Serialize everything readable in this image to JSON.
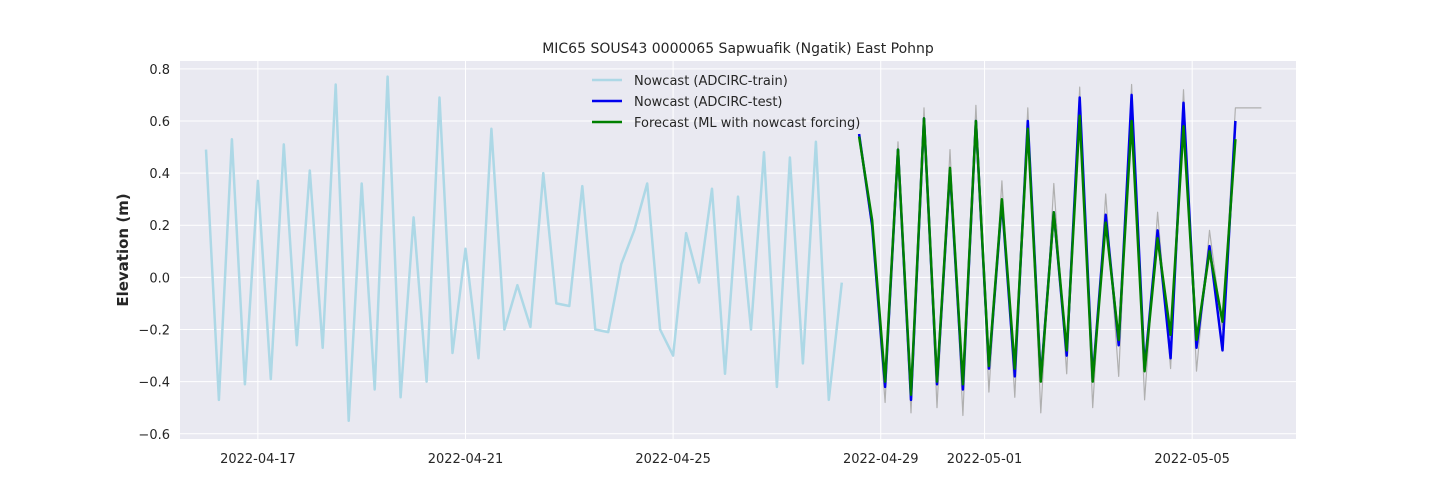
{
  "chart_data": {
    "type": "line",
    "title": "MIC65 SOUS43 0000065 Sapwuafik (Ngatik) East Pohnp",
    "xlabel": "",
    "ylabel": "Elevation (m)",
    "x_is_date": true,
    "xlim": [
      "2022-04-15T12:00",
      "2022-05-07T00:00"
    ],
    "ylim": [
      -0.62,
      0.83
    ],
    "xticks": [
      {
        "label": "2022-04-17",
        "value": "2022-04-17T00:00"
      },
      {
        "label": "2022-04-21",
        "value": "2022-04-21T00:00"
      },
      {
        "label": "2022-04-25",
        "value": "2022-04-25T00:00"
      },
      {
        "label": "2022-04-29",
        "value": "2022-04-29T00:00"
      },
      {
        "label": "2022-05-01",
        "value": "2022-05-01T00:00"
      },
      {
        "label": "2022-05-05",
        "value": "2022-05-05T00:00"
      }
    ],
    "yticks": [
      -0.6,
      -0.4,
      -0.2,
      0.0,
      0.2,
      0.4,
      0.6,
      0.8
    ],
    "ytick_labels": [
      "−0.6",
      "−0.4",
      "−0.2",
      "0.0",
      "0.2",
      "0.4",
      "0.6",
      "0.8"
    ],
    "grid": true,
    "legend_position": "top-center",
    "background": "#e9e9f1",
    "series": [
      {
        "name": "",
        "color": "#b0b0b0",
        "width": 1.2,
        "in_legend": false,
        "x": [
          "2022-04-28T14:00",
          "2022-04-28T20:00",
          "2022-04-29T02:00",
          "2022-04-29T08:00",
          "2022-04-29T14:00",
          "2022-04-29T20:00",
          "2022-04-30T02:00",
          "2022-04-30T08:00",
          "2022-04-30T14:00",
          "2022-04-30T20:00",
          "2022-05-01T02:00",
          "2022-05-01T08:00",
          "2022-05-01T14:00",
          "2022-05-01T20:00",
          "2022-05-02T02:00",
          "2022-05-02T08:00",
          "2022-05-02T14:00",
          "2022-05-02T20:00",
          "2022-05-03T02:00",
          "2022-05-03T08:00",
          "2022-05-03T14:00",
          "2022-05-03T20:00",
          "2022-05-04T02:00",
          "2022-05-04T08:00",
          "2022-05-04T14:00",
          "2022-05-04T20:00",
          "2022-05-05T02:00",
          "2022-05-05T08:00",
          "2022-05-05T14:00",
          "2022-05-05T20:00",
          "2022-05-06T02:00",
          "2022-05-06T08:00"
        ],
        "values": [
          0.53,
          0.18,
          -0.48,
          0.52,
          -0.52,
          0.65,
          -0.5,
          0.49,
          -0.53,
          0.66,
          -0.44,
          0.37,
          -0.46,
          0.65,
          -0.52,
          0.36,
          -0.37,
          0.73,
          -0.5,
          0.32,
          -0.38,
          0.74,
          -0.47,
          0.25,
          -0.35,
          0.72,
          -0.36,
          0.18,
          -0.2,
          0.65,
          0.65,
          0.65
        ]
      },
      {
        "name": "Nowcast (ADCIRC-train)",
        "color": "#add8e6",
        "width": 2.5,
        "in_legend": true,
        "x": [
          "2022-04-16T00:00",
          "2022-04-16T06:00",
          "2022-04-16T12:00",
          "2022-04-16T18:00",
          "2022-04-17T00:00",
          "2022-04-17T06:00",
          "2022-04-17T12:00",
          "2022-04-17T18:00",
          "2022-04-18T00:00",
          "2022-04-18T06:00",
          "2022-04-18T12:00",
          "2022-04-18T18:00",
          "2022-04-19T00:00",
          "2022-04-19T06:00",
          "2022-04-19T12:00",
          "2022-04-19T18:00",
          "2022-04-20T00:00",
          "2022-04-20T06:00",
          "2022-04-20T12:00",
          "2022-04-20T18:00",
          "2022-04-21T00:00",
          "2022-04-21T06:00",
          "2022-04-21T12:00",
          "2022-04-21T18:00",
          "2022-04-22T00:00",
          "2022-04-22T06:00",
          "2022-04-22T12:00",
          "2022-04-22T18:00",
          "2022-04-23T00:00",
          "2022-04-23T06:00",
          "2022-04-23T12:00",
          "2022-04-23T18:00",
          "2022-04-24T00:00",
          "2022-04-24T06:00",
          "2022-04-24T12:00",
          "2022-04-24T18:00",
          "2022-04-25T00:00",
          "2022-04-25T06:00",
          "2022-04-25T12:00",
          "2022-04-25T18:00",
          "2022-04-26T00:00",
          "2022-04-26T06:00",
          "2022-04-26T12:00",
          "2022-04-26T18:00",
          "2022-04-27T00:00",
          "2022-04-27T06:00",
          "2022-04-27T12:00",
          "2022-04-27T18:00",
          "2022-04-28T00:00",
          "2022-04-28T06:00"
        ],
        "values": [
          0.49,
          -0.47,
          0.53,
          -0.41,
          0.37,
          -0.39,
          0.51,
          -0.26,
          0.41,
          -0.27,
          0.74,
          -0.55,
          0.36,
          -0.43,
          0.77,
          -0.46,
          0.23,
          -0.4,
          0.69,
          -0.29,
          0.11,
          -0.31,
          0.57,
          -0.2,
          -0.03,
          -0.19,
          0.4,
          -0.1,
          -0.11,
          0.35,
          -0.2,
          -0.21,
          0.05,
          0.18,
          0.36,
          -0.2,
          -0.3,
          0.17,
          -0.02,
          0.34,
          -0.37,
          0.31,
          -0.2,
          0.48,
          -0.42,
          0.46,
          -0.33,
          0.52,
          -0.47,
          -0.02
        ]
      },
      {
        "name": "Nowcast (ADCIRC-test)",
        "color": "#0000ee",
        "width": 2.5,
        "in_legend": true,
        "x": [
          "2022-04-28T14:00",
          "2022-04-28T20:00",
          "2022-04-29T02:00",
          "2022-04-29T08:00",
          "2022-04-29T14:00",
          "2022-04-29T20:00",
          "2022-04-30T02:00",
          "2022-04-30T08:00",
          "2022-04-30T14:00",
          "2022-04-30T20:00",
          "2022-05-01T02:00",
          "2022-05-01T08:00",
          "2022-05-01T14:00",
          "2022-05-01T20:00",
          "2022-05-02T02:00",
          "2022-05-02T08:00",
          "2022-05-02T14:00",
          "2022-05-02T20:00",
          "2022-05-03T02:00",
          "2022-05-03T08:00",
          "2022-05-03T14:00",
          "2022-05-03T20:00",
          "2022-05-04T02:00",
          "2022-05-04T08:00",
          "2022-05-04T14:00",
          "2022-05-04T20:00",
          "2022-05-05T02:00",
          "2022-05-05T08:00",
          "2022-05-05T14:00",
          "2022-05-05T20:00"
        ],
        "values": [
          0.55,
          0.2,
          -0.42,
          0.49,
          -0.47,
          0.61,
          -0.41,
          0.41,
          -0.43,
          0.6,
          -0.35,
          0.29,
          -0.38,
          0.6,
          -0.39,
          0.25,
          -0.3,
          0.69,
          -0.39,
          0.24,
          -0.26,
          0.7,
          -0.35,
          0.18,
          -0.31,
          0.67,
          -0.27,
          0.12,
          -0.28,
          0.6
        ]
      },
      {
        "name": "Forecast (ML with nowcast forcing)",
        "color": "#008000",
        "width": 2.5,
        "in_legend": true,
        "x": [
          "2022-04-28T14:00",
          "2022-04-28T20:00",
          "2022-04-29T02:00",
          "2022-04-29T08:00",
          "2022-04-29T14:00",
          "2022-04-29T20:00",
          "2022-04-30T02:00",
          "2022-04-30T08:00",
          "2022-04-30T14:00",
          "2022-04-30T20:00",
          "2022-05-01T02:00",
          "2022-05-01T08:00",
          "2022-05-01T14:00",
          "2022-05-01T20:00",
          "2022-05-02T02:00",
          "2022-05-02T08:00",
          "2022-05-02T14:00",
          "2022-05-02T20:00",
          "2022-05-03T02:00",
          "2022-05-03T08:00",
          "2022-05-03T14:00",
          "2022-05-03T20:00",
          "2022-05-04T02:00",
          "2022-05-04T08:00",
          "2022-05-04T14:00",
          "2022-05-04T20:00",
          "2022-05-05T02:00",
          "2022-05-05T08:00",
          "2022-05-05T14:00",
          "2022-05-05T20:00"
        ],
        "values": [
          0.54,
          0.22,
          -0.4,
          0.49,
          -0.45,
          0.61,
          -0.4,
          0.42,
          -0.41,
          0.6,
          -0.34,
          0.3,
          -0.35,
          0.57,
          -0.4,
          0.25,
          -0.28,
          0.62,
          -0.4,
          0.21,
          -0.24,
          0.6,
          -0.36,
          0.15,
          -0.22,
          0.58,
          -0.24,
          0.1,
          -0.17,
          0.53
        ]
      }
    ]
  }
}
